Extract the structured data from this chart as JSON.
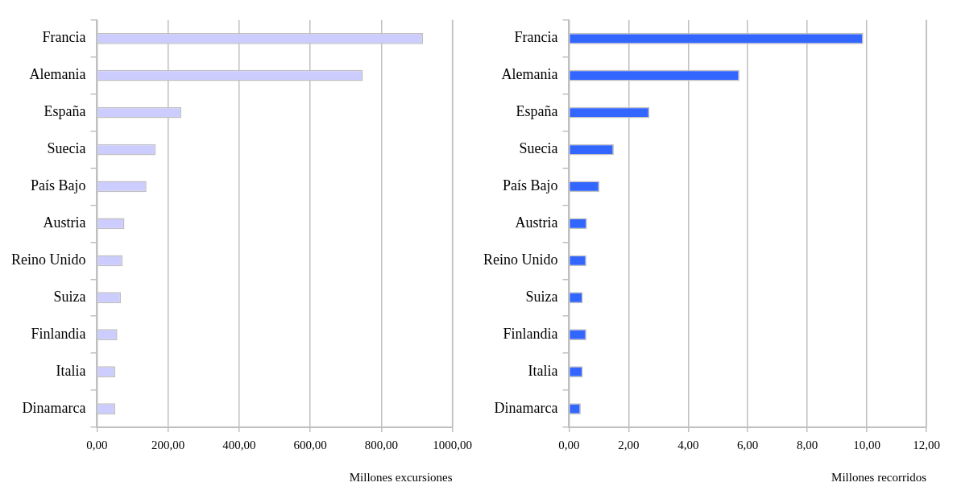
{
  "chart_data": [
    {
      "type": "bar",
      "orientation": "horizontal",
      "categories": [
        "Francia",
        "Alemania",
        "España",
        "Suecia",
        "País Bajo",
        "Austria",
        "Reino Unido",
        "Suiza",
        "Finlandia",
        "Italia",
        "Dinamarca"
      ],
      "values": [
        917,
        748,
        237,
        165,
        139,
        77,
        72,
        67,
        57,
        51,
        51
      ],
      "color": "#ccccff",
      "xlim": [
        0,
        1000
      ],
      "xticks": [
        {
          "value": 0,
          "label": "0,00"
        },
        {
          "value": 200,
          "label": "200,00"
        },
        {
          "value": 400,
          "label": "400,00"
        },
        {
          "value": 600,
          "label": "600,00"
        },
        {
          "value": 800,
          "label": "800,00"
        },
        {
          "value": 1000,
          "label": "1000,00"
        }
      ],
      "xlabel": "Millones excursiones",
      "grid": "x",
      "legend": false
    },
    {
      "type": "bar",
      "orientation": "horizontal",
      "categories": [
        "Francia",
        "Alemania",
        "España",
        "Suecia",
        "País Bajo",
        "Austria",
        "Reino Unido",
        "Suiza",
        "Finlandia",
        "Italia",
        "Dinamarca"
      ],
      "values": [
        9.88,
        5.72,
        2.7,
        1.5,
        1.02,
        0.6,
        0.58,
        0.46,
        0.58,
        0.46,
        0.39
      ],
      "color": "#3366ff",
      "xlim": [
        0,
        12
      ],
      "xticks": [
        {
          "value": 0,
          "label": "0,00"
        },
        {
          "value": 2,
          "label": "2,00"
        },
        {
          "value": 4,
          "label": "4,00"
        },
        {
          "value": 6,
          "label": "6,00"
        },
        {
          "value": 8,
          "label": "8,00"
        },
        {
          "value": 10,
          "label": "10,00"
        },
        {
          "value": 12,
          "label": "12,00"
        }
      ],
      "xlabel": "Millones recorridos",
      "grid": "x",
      "legend": false
    }
  ]
}
